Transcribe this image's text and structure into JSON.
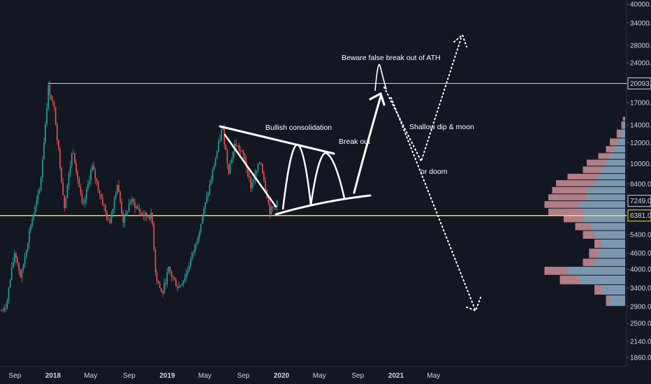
{
  "chart_data": {
    "type": "candlestick",
    "y_scale": "log",
    "y_ticks": [
      "40000.0",
      "34000.0",
      "28000.0",
      "24000.0",
      "20093.0",
      "17000.0",
      "14000.0",
      "12000.0",
      "10000.0",
      "8400.0",
      "7249.0",
      "6381.0",
      "5400.0",
      "4600.0",
      "4000.0",
      "3400.0",
      "2900.0",
      "2500.0",
      "2140.0",
      "1860.0"
    ],
    "x_ticks": [
      "Sep",
      "2018",
      "May",
      "Sep",
      "2019",
      "May",
      "Sep",
      "2020",
      "May",
      "Sep",
      "2021",
      "May"
    ],
    "price_labels": {
      "ath": "20093.0",
      "support": "6381.0",
      "current": "7249.0"
    },
    "annotations": {
      "consolidation": "Bullish consolidation",
      "breakout": "Break out",
      "false_breakout": "Beware false break out of ATH",
      "shallow_dip": "Shallow dip & moon",
      "doom": "or doom"
    },
    "volume_profile": [
      {
        "price": 2900,
        "buy": 0.2,
        "sell": 0.05
      },
      {
        "price": 3200,
        "buy": 0.3,
        "sell": 0.1
      },
      {
        "price": 3500,
        "buy": 0.6,
        "sell": 0.25
      },
      {
        "price": 3800,
        "buy": 0.75,
        "sell": 0.3
      },
      {
        "price": 4100,
        "buy": 0.4,
        "sell": 0.15
      },
      {
        "price": 4400,
        "buy": 0.35,
        "sell": 0.12
      },
      {
        "price": 4800,
        "buy": 0.3,
        "sell": 0.1
      },
      {
        "price": 5200,
        "buy": 0.4,
        "sell": 0.15
      },
      {
        "price": 5600,
        "buy": 0.45,
        "sell": 0.2
      },
      {
        "price": 6000,
        "buy": 0.55,
        "sell": 0.25
      },
      {
        "price": 6381,
        "buy": 0.55,
        "sell": 0.45
      },
      {
        "price": 6800,
        "buy": 0.6,
        "sell": 0.45
      },
      {
        "price": 7250,
        "buy": 0.5,
        "sell": 0.5
      },
      {
        "price": 7700,
        "buy": 0.5,
        "sell": 0.45
      },
      {
        "price": 8200,
        "buy": 0.4,
        "sell": 0.5
      },
      {
        "price": 8700,
        "buy": 0.35,
        "sell": 0.4
      },
      {
        "price": 9200,
        "buy": 0.3,
        "sell": 0.25
      },
      {
        "price": 9800,
        "buy": 0.25,
        "sell": 0.25
      },
      {
        "price": 10400,
        "buy": 0.2,
        "sell": 0.15
      },
      {
        "price": 11000,
        "buy": 0.15,
        "sell": 0.1
      },
      {
        "price": 11700,
        "buy": 0.1,
        "sell": 0.1
      },
      {
        "price": 12500,
        "buy": 0.06,
        "sell": 0.05
      },
      {
        "price": 13500,
        "buy": 0.03,
        "sell": 0.02
      },
      {
        "price": 14500,
        "buy": 0.02,
        "sell": 0.01
      }
    ],
    "price_path": [
      [
        "2017-08-01",
        2800
      ],
      [
        "2017-09-01",
        4700
      ],
      [
        "2017-09-20",
        3700
      ],
      [
        "2017-10-20",
        5800
      ],
      [
        "2017-11-20",
        8000
      ],
      [
        "2017-12-17",
        19500
      ],
      [
        "2018-01-05",
        16000
      ],
      [
        "2018-02-06",
        6900
      ],
      [
        "2018-03-05",
        11500
      ],
      [
        "2018-04-06",
        6700
      ],
      [
        "2018-05-05",
        9800
      ],
      [
        "2018-06-29",
        5900
      ],
      [
        "2018-07-25",
        8400
      ],
      [
        "2018-08-14",
        6000
      ],
      [
        "2018-09-05",
        7300
      ],
      [
        "2018-10-15",
        6400
      ],
      [
        "2018-11-13",
        6350
      ],
      [
        "2018-11-25",
        3800
      ],
      [
        "2018-12-15",
        3200
      ],
      [
        "2019-01-05",
        4000
      ],
      [
        "2019-02-05",
        3400
      ],
      [
        "2019-03-01",
        3800
      ],
      [
        "2019-04-02",
        5000
      ],
      [
        "2019-05-14",
        8000
      ],
      [
        "2019-06-26",
        13800
      ],
      [
        "2019-07-16",
        9400
      ],
      [
        "2019-08-06",
        12000
      ],
      [
        "2019-09-05",
        10500
      ],
      [
        "2019-09-25",
        8200
      ],
      [
        "2019-10-26",
        10300
      ],
      [
        "2019-11-25",
        6600
      ],
      [
        "2019-12-20",
        7249
      ]
    ]
  }
}
